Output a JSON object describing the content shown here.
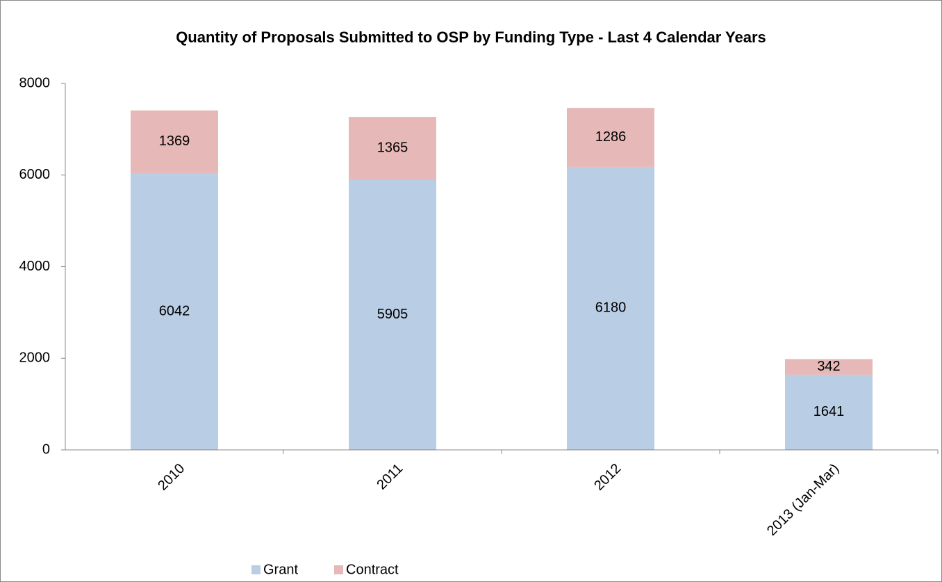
{
  "chart_data": {
    "type": "bar",
    "stacked": true,
    "title": "Quantity of Proposals Submitted to OSP by Funding Type - Last 4 Calendar Years",
    "categories": [
      "2010",
      "2011",
      "2012",
      "2013 (Jan-Mar)"
    ],
    "series": [
      {
        "name": "Grant",
        "color": "#b9cde5",
        "values": [
          6042,
          5905,
          6180,
          1641
        ]
      },
      {
        "name": "Contract",
        "color": "#e6b9b8",
        "values": [
          1369,
          1365,
          1286,
          342
        ]
      }
    ],
    "ylim": [
      0,
      8000
    ],
    "yticks": [
      0,
      2000,
      4000,
      6000,
      8000
    ],
    "grid": false,
    "legend": "bottom"
  }
}
